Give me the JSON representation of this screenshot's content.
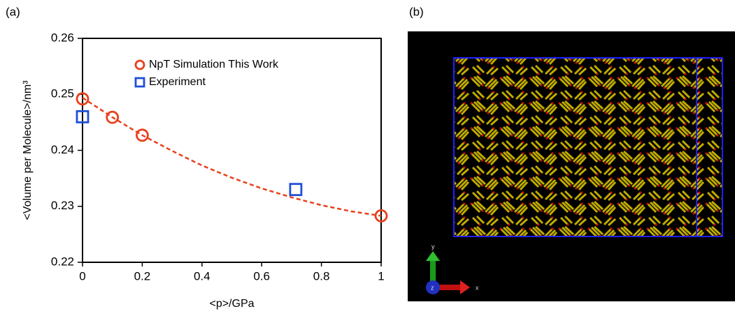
{
  "panel_labels": [
    "(a)",
    "(b)"
  ],
  "chart_data": {
    "type": "scatter",
    "xlabel": "<p>/GPa",
    "ylabel": "<Volume per Molecule>/nm³",
    "xlim": [
      0,
      1
    ],
    "xticks": [
      0,
      0.2,
      0.4,
      0.6,
      0.8,
      1
    ],
    "ylim": [
      0.22,
      0.26
    ],
    "yticks": [
      0.22,
      0.23,
      0.24,
      0.25,
      0.26
    ],
    "legend": "upper center",
    "series": [
      {
        "name": "NpT Simulation This Work",
        "color": "#e8401c",
        "marker": "circle",
        "x": [
          0,
          0.1,
          0.2,
          1
        ],
        "values": [
          0.2492,
          0.2459,
          0.2427,
          0.2283
        ]
      },
      {
        "name": "Experiment",
        "color": "#1f4fd8",
        "marker": "square",
        "x": [
          0,
          0.714
        ],
        "values": [
          0.246,
          0.233
        ]
      }
    ],
    "fit": {
      "color": "#e8401c",
      "x": [
        0,
        0.1,
        0.2,
        0.3,
        0.4,
        0.5,
        0.6,
        0.7,
        0.8,
        0.9,
        1
      ],
      "values": [
        0.2494,
        0.2459,
        0.2427,
        0.2399,
        0.2373,
        0.2351,
        0.2332,
        0.2316,
        0.2302,
        0.2291,
        0.2283
      ]
    }
  },
  "image": {
    "axis_labels": [
      "x",
      "y",
      "z"
    ]
  }
}
